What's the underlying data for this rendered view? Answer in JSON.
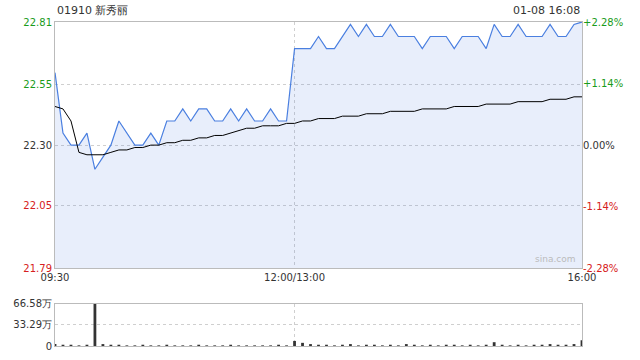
{
  "chart_data": [
    {
      "type": "line",
      "title": "01910 新秀丽",
      "subtitle": "01-08 16:08",
      "categories": [
        "09:30",
        null,
        null,
        null,
        null,
        null,
        null,
        null,
        null,
        null,
        null,
        null,
        null,
        null,
        null,
        null,
        null,
        null,
        null,
        null,
        null,
        null,
        null,
        null,
        null,
        null,
        null,
        null,
        null,
        null,
        "12:00/13:00",
        null,
        null,
        null,
        null,
        null,
        null,
        null,
        null,
        null,
        null,
        null,
        null,
        null,
        null,
        null,
        null,
        null,
        null,
        null,
        null,
        null,
        null,
        null,
        null,
        null,
        null,
        null,
        null,
        null,
        null,
        null,
        null,
        null,
        null,
        null,
        "16:00"
      ],
      "series": [
        {
          "type": "area",
          "color": "#4a7fe0",
          "values": [
            22.6,
            22.35,
            22.3,
            22.3,
            22.35,
            22.2,
            22.25,
            22.3,
            22.4,
            22.35,
            22.3,
            22.3,
            22.35,
            22.3,
            22.4,
            22.4,
            22.45,
            22.4,
            22.45,
            22.45,
            22.4,
            22.4,
            22.45,
            22.4,
            22.45,
            22.4,
            22.4,
            22.45,
            22.4,
            22.4,
            22.7,
            22.7,
            22.7,
            22.75,
            22.7,
            22.7,
            22.75,
            22.8,
            22.75,
            22.8,
            22.75,
            22.75,
            22.8,
            22.75,
            22.75,
            22.75,
            22.7,
            22.75,
            22.75,
            22.75,
            22.7,
            22.75,
            22.75,
            22.75,
            22.7,
            22.8,
            22.75,
            22.75,
            22.8,
            22.75,
            22.75,
            22.75,
            22.8,
            22.75,
            22.75,
            22.8,
            22.81
          ]
        },
        {
          "type": "line",
          "color": "#000000",
          "values": [
            22.46,
            22.45,
            22.4,
            22.27,
            22.26,
            22.26,
            22.26,
            22.27,
            22.28,
            22.28,
            22.29,
            22.29,
            22.3,
            22.3,
            22.31,
            22.31,
            22.32,
            22.32,
            22.33,
            22.33,
            22.34,
            22.34,
            22.35,
            22.36,
            22.37,
            22.37,
            22.38,
            22.38,
            22.38,
            22.39,
            22.39,
            22.4,
            22.4,
            22.41,
            22.41,
            22.41,
            22.42,
            22.42,
            22.42,
            22.43,
            22.43,
            22.43,
            22.44,
            22.44,
            22.44,
            22.44,
            22.45,
            22.45,
            22.45,
            22.45,
            22.46,
            22.46,
            22.46,
            22.46,
            22.47,
            22.47,
            22.47,
            22.47,
            22.48,
            22.48,
            22.48,
            22.48,
            22.49,
            22.49,
            22.49,
            22.5,
            22.5
          ]
        }
      ],
      "ylim": [
        21.79,
        22.81
      ],
      "yticks": [
        22.81,
        22.55,
        {
          "value": 22.3,
          "label": "22.30"
        },
        22.05,
        21.79
      ],
      "y2lim": [
        -2.28,
        2.28
      ],
      "y2ticks": [
        {
          "value": 2.28,
          "label": "+2.28%"
        },
        {
          "value": 1.14,
          "label": "+1.14%"
        },
        {
          "value": 0,
          "label": "0.00%"
        },
        {
          "value": -1.14,
          "label": "-1.14%"
        },
        {
          "value": -2.28,
          "label": "-2.28%"
        }
      ],
      "grid": true,
      "annotations": [
        {
          "text": "sina.com"
        }
      ]
    },
    {
      "type": "bar",
      "categories": [
        "09:30",
        null,
        null,
        null,
        null,
        null,
        null,
        null,
        null,
        null,
        null,
        null,
        null,
        null,
        null,
        null,
        null,
        null,
        null,
        null,
        null,
        null,
        null,
        null,
        null,
        null,
        null,
        null,
        null,
        null,
        "12:00/13:00",
        null,
        null,
        null,
        null,
        null,
        null,
        null,
        null,
        null,
        null,
        null,
        null,
        null,
        null,
        null,
        null,
        null,
        null,
        null,
        null,
        null,
        null,
        null,
        null,
        null,
        null,
        null,
        null,
        null,
        null,
        null,
        null,
        null,
        null,
        null,
        "16:00"
      ],
      "values": [
        3,
        2,
        2,
        1,
        2,
        66.58,
        3,
        2,
        2,
        1,
        1,
        2,
        1,
        1,
        2,
        1,
        1,
        1,
        2,
        1,
        1,
        1,
        2,
        1,
        1,
        1,
        1,
        1,
        2,
        1,
        8,
        5,
        3,
        2,
        2,
        1,
        2,
        3,
        1,
        2,
        2,
        1,
        2,
        1,
        3,
        2,
        1,
        2,
        1,
        2,
        2,
        1,
        2,
        1,
        2,
        6,
        2,
        1,
        2,
        1,
        2,
        2,
        3,
        2,
        2,
        3,
        9
      ],
      "color": "#333333",
      "ylim": [
        0,
        66.58
      ],
      "yticks": [
        {
          "value": 66.58,
          "label": "66.58万"
        },
        {
          "value": 33.29,
          "label": "33.29万"
        },
        0
      ],
      "grid": true,
      "tick_labels": "y"
    }
  ]
}
